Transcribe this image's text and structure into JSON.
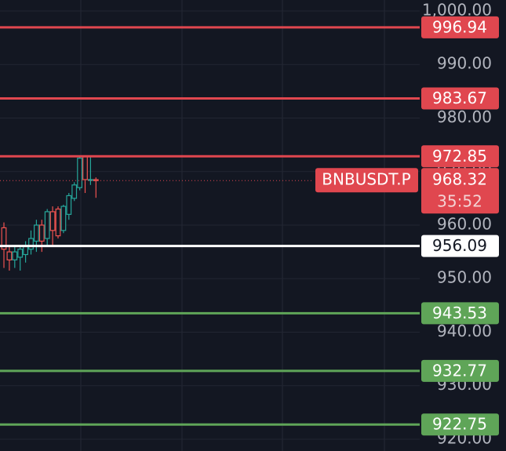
{
  "chart_data": {
    "type": "candlestick",
    "categories": [
      null,
      null,
      null,
      null,
      null,
      null,
      null,
      null,
      null,
      null,
      null,
      null,
      null,
      null,
      null,
      null,
      null,
      null
    ],
    "open": [
      959.5,
      955,
      953.5,
      954,
      954.5,
      955.5,
      957,
      960,
      957.5,
      962.5,
      963,
      959,
      962,
      965,
      967,
      972.8,
      968.5,
      968.5
    ],
    "high": [
      960.5,
      956,
      956,
      956,
      957,
      959,
      961,
      961,
      963,
      963.5,
      963.5,
      963.8,
      966,
      968,
      972.8,
      972.85,
      972.8,
      968.9
    ],
    "low": [
      952,
      951.5,
      952,
      951.5,
      953,
      954.5,
      955,
      955,
      956,
      956,
      957.5,
      958.5,
      961,
      964.5,
      966.5,
      966,
      967.5,
      965.1
    ],
    "close": [
      955.5,
      953.5,
      955,
      955.5,
      956,
      957.5,
      960,
      957,
      962.5,
      959,
      958,
      963.5,
      965.5,
      967.5,
      972.5,
      968.5,
      968.5,
      968.3
    ],
    "up_color": "#26a69a",
    "down_color": "#ef5350",
    "ylim": [
      917.8,
      1002.05
    ],
    "yticks": [
      {
        "value": 920,
        "label": "920.00"
      },
      {
        "value": 930,
        "label": "930.00"
      },
      {
        "value": 940,
        "label": "940.00"
      },
      {
        "value": 950,
        "label": "950.00"
      },
      {
        "value": 960,
        "label": "960.00"
      },
      {
        "value": 970,
        "label": "970.00"
      },
      {
        "value": 980,
        "label": "980.00"
      },
      {
        "value": 990,
        "label": "990.00"
      },
      {
        "value": 1000,
        "label": "1,000.00"
      }
    ],
    "grid": true,
    "levels": [
      {
        "value": 996.94,
        "color": "#e0474f"
      },
      {
        "value": 983.67,
        "color": "#e0474f"
      },
      {
        "value": 972.85,
        "color": "#e0474f"
      },
      {
        "value": 956.09,
        "color": "#ffffff"
      },
      {
        "value": 943.53,
        "color": "#5fa558"
      },
      {
        "value": 932.77,
        "color": "#5fa558"
      },
      {
        "value": 922.75,
        "color": "#5fa558"
      }
    ],
    "current_price": {
      "value": 968.32,
      "symbol": "BNBUSDT.P",
      "countdown": "35:52",
      "color": "#e0474f"
    }
  }
}
